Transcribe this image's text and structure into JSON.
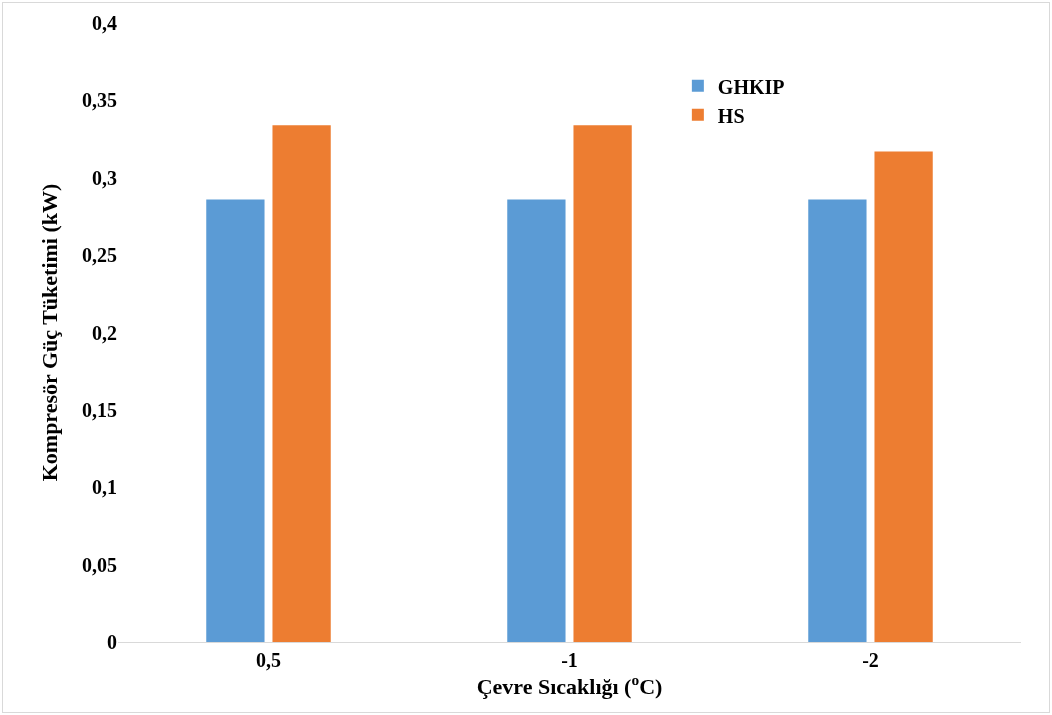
{
  "chart_data": {
    "type": "bar",
    "xlabel": "Çevre Sıcaklığı ($^{o}$C)",
    "ylabel": "Kompresör Güç Tüketimi (kW)",
    "categories": [
      "0,5",
      "-1",
      "-2"
    ],
    "series": [
      {
        "name": "GHKIP",
        "color": "#5b9bd5",
        "values": [
          0.286,
          0.286,
          0.286
        ]
      },
      {
        "name": "HS",
        "color": "#ed7d31",
        "values": [
          0.334,
          0.334,
          0.317
        ]
      }
    ],
    "ylim": [
      0,
      0.4
    ],
    "yticks": [
      {
        "value": 0,
        "label": "0"
      },
      {
        "value": 0.05,
        "label": "0,05"
      },
      {
        "value": 0.1,
        "label": "0,1"
      },
      {
        "value": 0.15,
        "label": "0,15"
      },
      {
        "value": 0.2,
        "label": "0,2"
      },
      {
        "value": 0.25,
        "label": "0,25"
      },
      {
        "value": 0.3,
        "label": "0,3"
      },
      {
        "value": 0.35,
        "label": "0,35"
      },
      {
        "value": 0.4,
        "label": "0,4"
      }
    ],
    "grid": false,
    "legend": "top right"
  }
}
